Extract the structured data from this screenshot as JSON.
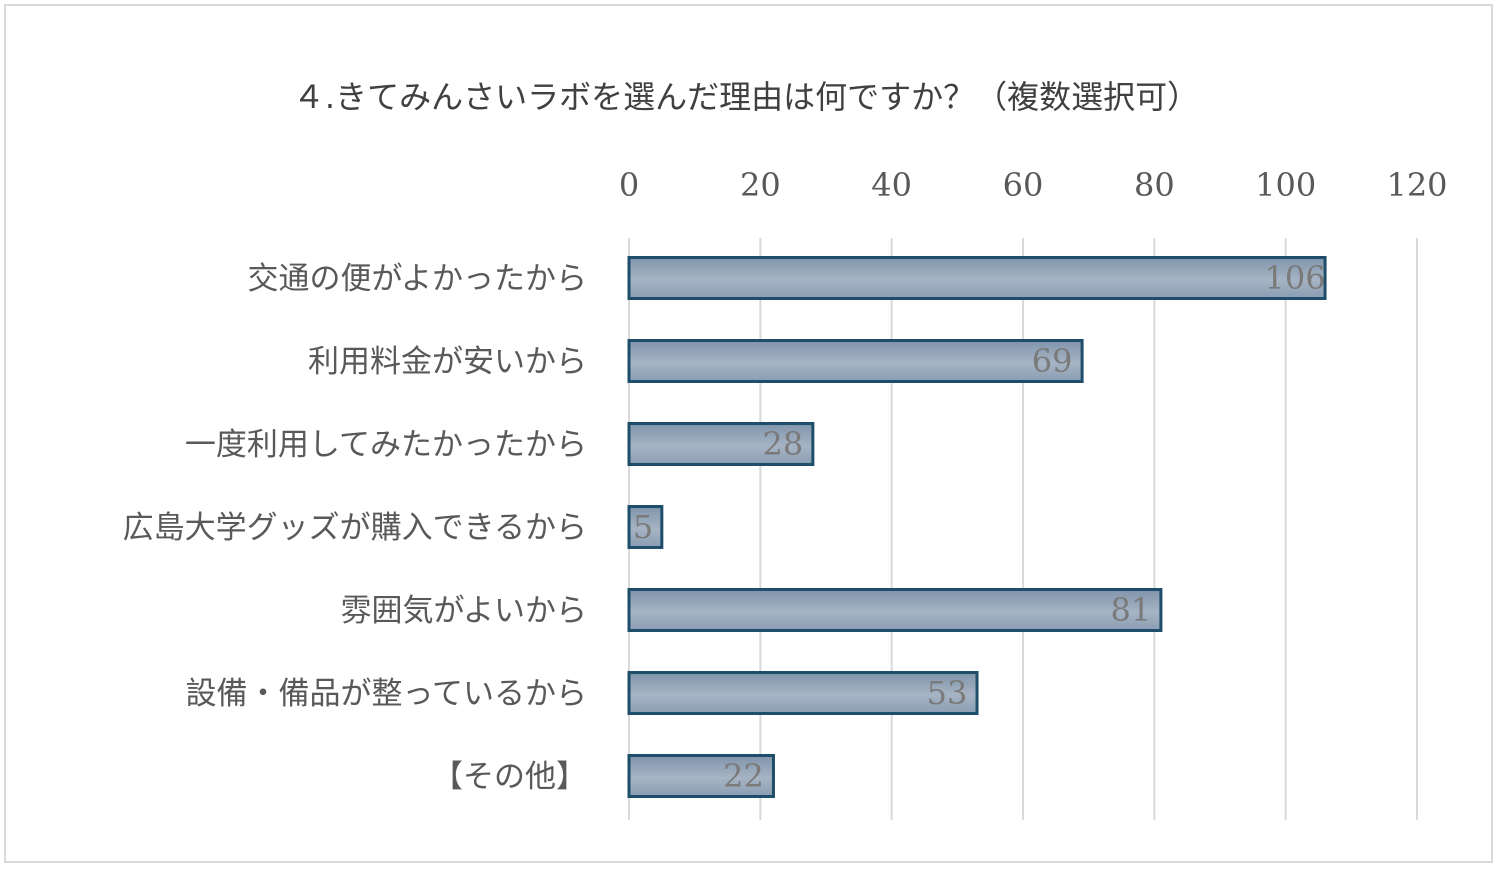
{
  "chart_data": {
    "type": "bar",
    "orientation": "horizontal",
    "title": "４.きてみんさいラボを選んだ理由は何ですか？（複数選択可）",
    "categories": [
      "交通の便がよかったから",
      "利用料金が安いから",
      "一度利用してみたかったから",
      "広島大学グッズが購入できるから",
      "雰囲気がよいから",
      "設備・備品が整っているから",
      "【その他】"
    ],
    "values": [
      106,
      69,
      28,
      5,
      81,
      53,
      22
    ],
    "xlim": [
      0,
      120
    ],
    "ticks": [
      "0",
      "20",
      "40",
      "60",
      "80",
      "100",
      "120"
    ],
    "xaxis_position": "top",
    "grid": true,
    "data_labels": true,
    "legend": false,
    "bar_color": "#8a9db3",
    "bar_border_color": "#1f4e6b"
  }
}
